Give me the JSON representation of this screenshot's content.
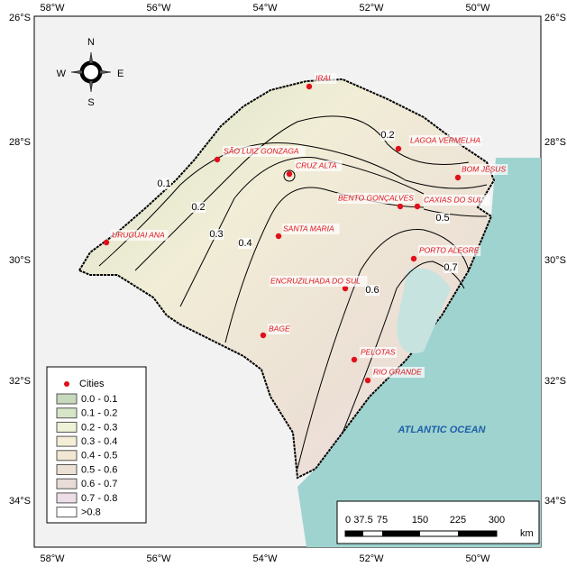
{
  "map": {
    "lon_labels": [
      "58°W",
      "56°W",
      "54°W",
      "52°W",
      "50°W"
    ],
    "lat_labels": [
      "26°S",
      "28°S",
      "30°S",
      "32°S",
      "34°S"
    ],
    "cities": [
      "IRAI",
      "LAGOA VERMELHA",
      "BOM JESUS",
      "SÃO LUIZ GONZAGA",
      "CRUZ ALTA",
      "BENTO GONÇALVES",
      "CAXIAS DO SUL",
      "URUGUAI ANA",
      "SANTA MARIA",
      "PORTO ALEGRE",
      "ENCRUZILHADA DO SUL",
      "BAGE",
      "PELOTAS",
      "RIO GRANDE"
    ],
    "contour_labels": [
      "0.1",
      "0.2",
      "0.3",
      "0.4",
      "0.2",
      "0.5",
      "0.6",
      "0.7"
    ],
    "ocean_label": "ATLANTIC OCEAN",
    "compass": [
      "N",
      "E",
      "S",
      "W"
    ],
    "legend": {
      "title": "Cities",
      "items": [
        {
          "label": "0.0 - 0.1",
          "color": "#c6d9bd"
        },
        {
          "label": "0.1 - 0.2",
          "color": "#d7e5c7"
        },
        {
          "label": "0.2 - 0.3",
          "color": "#eef2d6"
        },
        {
          "label": "0.3 - 0.4",
          "color": "#f3eed5"
        },
        {
          "label": "0.4 - 0.5",
          "color": "#f1e7d3"
        },
        {
          "label": "0.5 - 0.6",
          "color": "#ece1d4"
        },
        {
          "label": "0.6 - 0.7",
          "color": "#e8dcd8"
        },
        {
          "label": "0.7 - 0.8",
          "color": "#eddde7"
        },
        {
          "label": ">0.8",
          "color": "#ffffff"
        }
      ]
    },
    "scale_bar": {
      "labels": [
        "0",
        "37.5",
        "75",
        "150",
        "225",
        "300"
      ],
      "unit": "km"
    }
  }
}
